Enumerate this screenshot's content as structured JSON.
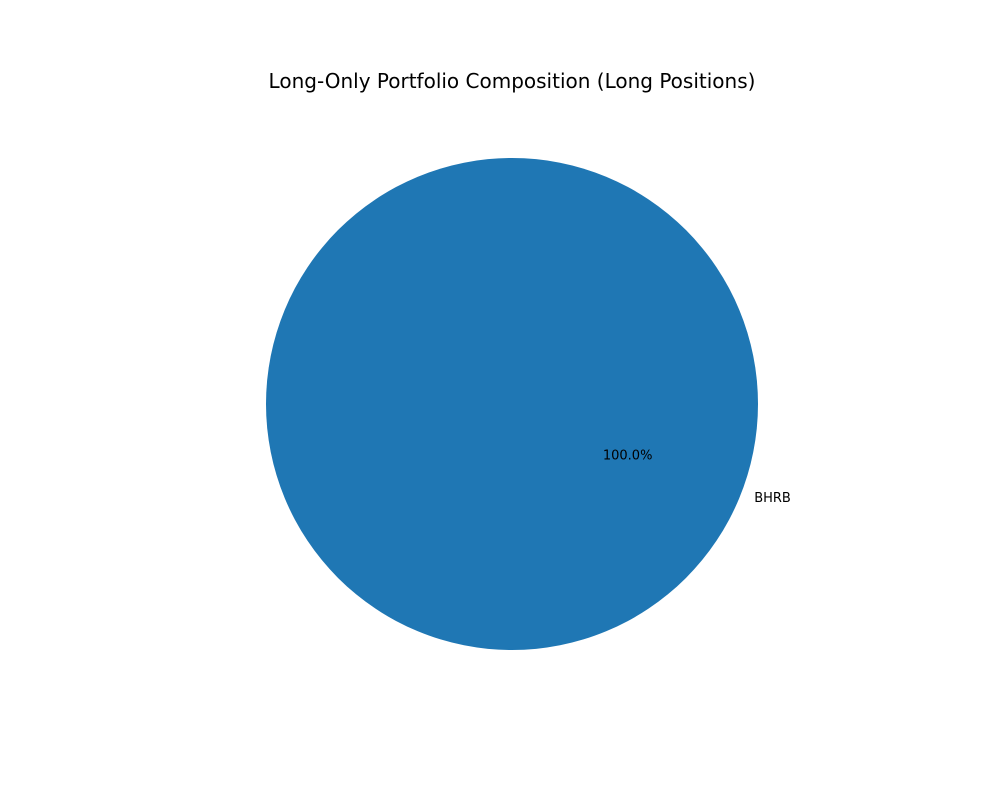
{
  "chart_data": {
    "type": "pie",
    "title": "Long-Only Portfolio Composition (Long Positions)",
    "slices": [
      {
        "label": "BHRB",
        "value": 100.0,
        "percent_label": "100.0%",
        "color": "#1f77b4"
      }
    ],
    "autopct": true,
    "legend": "none"
  }
}
